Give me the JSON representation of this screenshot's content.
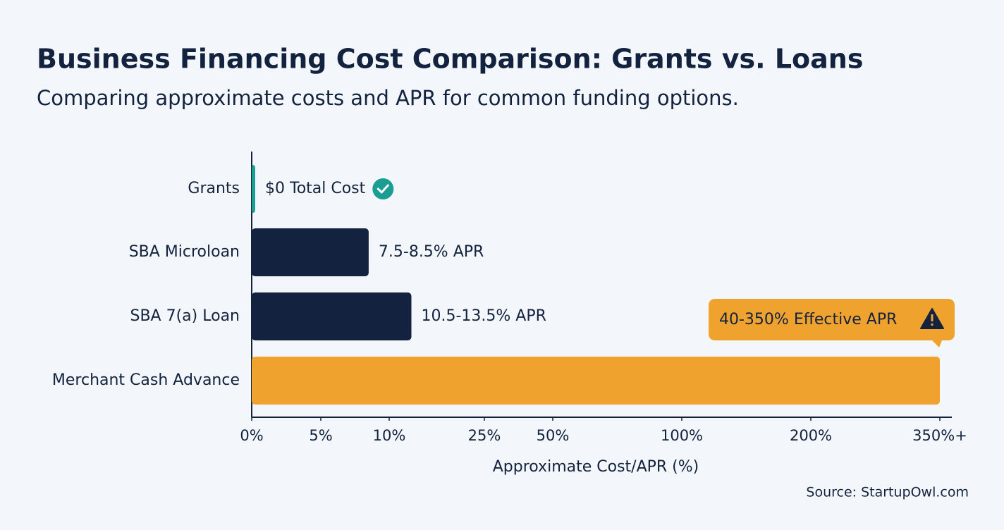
{
  "chart_data": {
    "type": "bar",
    "orientation": "horizontal",
    "title": "Business Financing Cost Comparison: Grants vs. Loans",
    "subtitle": "Comparing approximate costs and APR for common funding options.",
    "categories": [
      "Grants",
      "SBA Microloan",
      "SBA 7(a) Loan",
      "Merchant Cash Advance"
    ],
    "values": [
      0,
      8.5,
      13.5,
      350
    ],
    "value_labels": [
      "$0 Total Cost",
      "7.5-8.5% APR",
      "10.5-13.5% APR",
      "40-350% Effective APR"
    ],
    "colors": [
      "#1a9e93",
      "#13233f",
      "#13233f",
      "#f0a22e"
    ],
    "xlim": [
      0,
      350
    ],
    "xticks": [
      {
        "value": 0,
        "label": "0%"
      },
      {
        "value": 5,
        "label": "5%"
      },
      {
        "value": 10,
        "label": "10%"
      },
      {
        "value": 25,
        "label": "25%"
      },
      {
        "value": 50,
        "label": "50%"
      },
      {
        "value": 100,
        "label": "100%"
      },
      {
        "value": 200,
        "label": "200%"
      },
      {
        "value": 350,
        "label": "350%+"
      }
    ],
    "xlabel": "Approximate Cost/APR (%)",
    "source": "Source: StartupOwl.com"
  }
}
